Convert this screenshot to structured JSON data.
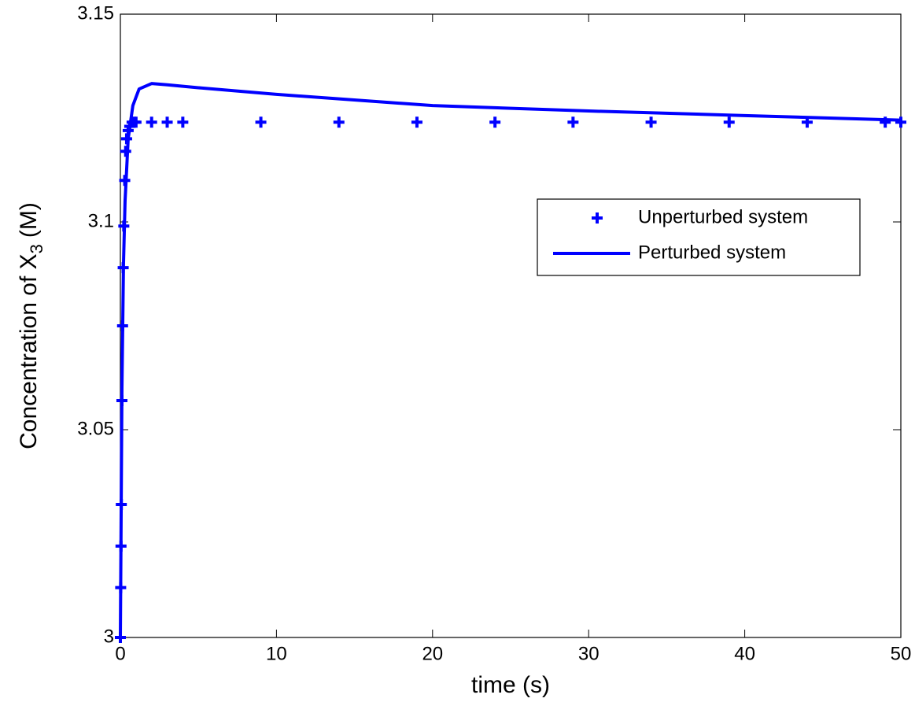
{
  "chart_data": {
    "type": "scatter-line",
    "xlabel": "time (s)",
    "ylabel": {
      "text": "Concentration of X",
      "subscript": "3",
      "suffix": "(M)"
    },
    "xlim": [
      0,
      50
    ],
    "ylim": [
      3,
      3.15
    ],
    "xticks": [
      0,
      10,
      20,
      30,
      40,
      50
    ],
    "yticks": [
      3,
      3.05,
      3.1,
      3.15
    ],
    "grid": false,
    "legend_loc": "right",
    "series": [
      {
        "name": "Unperturbed system",
        "color": "#0000ff",
        "marker": "plus",
        "x": [
          0,
          0.02,
          0.04,
          0.06,
          0.1,
          0.14,
          0.18,
          0.22,
          0.28,
          0.34,
          0.4,
          0.5,
          0.6,
          0.75,
          0.9,
          1,
          2,
          3,
          4,
          9,
          14,
          19,
          24,
          29,
          34,
          39,
          44,
          49,
          50
        ],
        "values": [
          3.0,
          3.012,
          3.022,
          3.032,
          3.057,
          3.075,
          3.089,
          3.099,
          3.11,
          3.117,
          3.12,
          3.122,
          3.123,
          3.124,
          3.124,
          3.124,
          3.124,
          3.124,
          3.124,
          3.124,
          3.124,
          3.124,
          3.124,
          3.124,
          3.124,
          3.124,
          3.124,
          3.124,
          3.124
        ]
      },
      {
        "name": "Perturbed system",
        "color": "#0000ff",
        "marker": "line",
        "x": [
          0,
          0.1,
          0.2,
          0.3,
          0.5,
          0.8,
          1.2,
          2,
          3,
          5,
          10,
          20,
          30,
          40,
          50
        ],
        "values": [
          3.0,
          3.06,
          3.09,
          3.105,
          3.12,
          3.128,
          3.132,
          3.1333,
          3.133,
          3.1323,
          3.1307,
          3.128,
          3.1267,
          3.1256,
          3.1245
        ]
      }
    ]
  }
}
